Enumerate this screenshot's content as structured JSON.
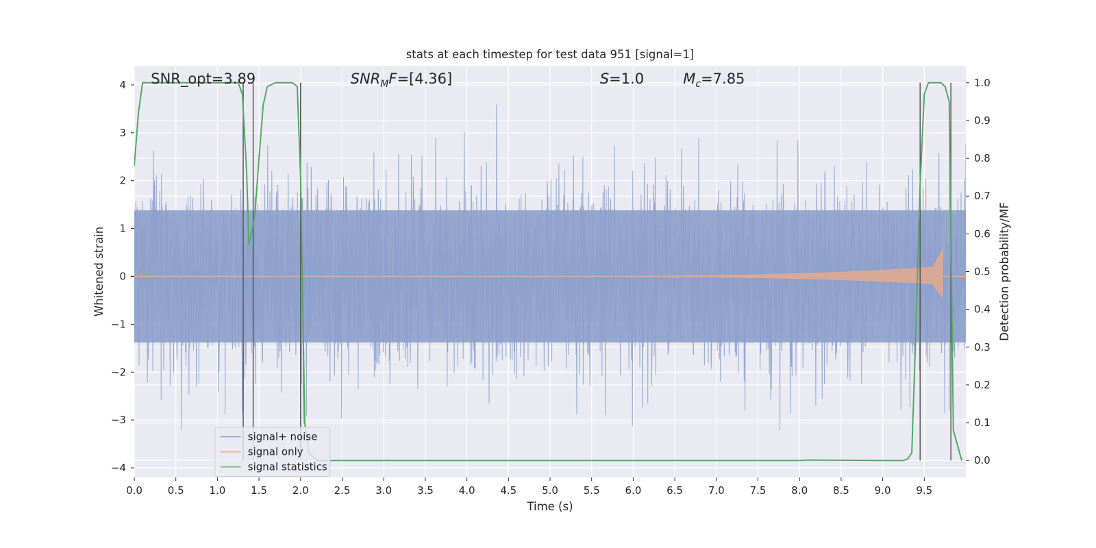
{
  "chart_data": {
    "type": "line",
    "title": "stats at each timestep for test data 951 [signal=1]",
    "xlabel": "Time (s)",
    "ylabel_left": "Whitened strain",
    "ylabel_right": "Detection probability/MF",
    "xlim": [
      0.0,
      10.0
    ],
    "ylim_left": [
      -4.2,
      4.4
    ],
    "ylim_right": [
      -0.045,
      1.045
    ],
    "x_ticks": [
      "0.0",
      "0.5",
      "1.0",
      "1.5",
      "2.0",
      "2.5",
      "3.0",
      "3.5",
      "4.0",
      "4.5",
      "5.0",
      "5.5",
      "6.0",
      "6.5",
      "7.0",
      "7.5",
      "8.0",
      "8.5",
      "9.0",
      "9.5"
    ],
    "y_ticks_left": [
      "4",
      "3",
      "2",
      "1",
      "0",
      "−1",
      "−2",
      "−3",
      "−4"
    ],
    "y_ticks_right": [
      "1.0",
      "0.9",
      "0.8",
      "0.7",
      "0.6",
      "0.5",
      "0.4",
      "0.3",
      "0.2",
      "0.1",
      "0.0"
    ],
    "grid": true,
    "legend_position": "lower-left",
    "annotations": {
      "snr_opt": "SNR_opt=3.89",
      "snr_mf": "=[4.36]",
      "snr_mf_symbol": "SNR",
      "snr_mf_sub": "M",
      "snr_mf_f": "F",
      "s_sym": "S",
      "s_val": "=1.0",
      "mc_sym": "M",
      "mc_sub": "c",
      "mc_val": "=7.85"
    },
    "series": [
      {
        "name": "signal+ noise",
        "color": "#8da0cb",
        "description_values": "white Gaussian noise, envelope about ±2.2 with spikes to ±3.8"
      },
      {
        "name": "signal only",
        "color": "#e5a98c",
        "chirp_start": 5.5,
        "chirp_end": 9.72,
        "peak_amplitude": 0.55
      },
      {
        "name": "signal statistics",
        "color": "#55a868",
        "x": [
          0.0,
          0.05,
          0.1,
          0.2,
          0.5,
          1.0,
          1.25,
          1.3,
          1.35,
          1.38,
          1.45,
          1.5,
          1.55,
          1.6,
          1.7,
          1.9,
          1.96,
          2.0,
          2.05,
          2.1,
          2.2,
          3.0,
          5.0,
          7.0,
          8.0,
          8.1,
          9.0,
          9.25,
          9.3,
          9.35,
          9.4,
          9.45,
          9.5,
          9.55,
          9.6,
          9.7,
          9.75,
          9.8,
          9.85,
          9.95
        ],
        "y": [
          0.78,
          0.92,
          1.0,
          1.0,
          1.0,
          1.0,
          1.0,
          0.97,
          0.77,
          0.57,
          0.65,
          0.8,
          0.94,
          0.99,
          1.0,
          1.0,
          0.99,
          0.75,
          0.1,
          0.02,
          0.0,
          0.0,
          0.0,
          0.0,
          0.0,
          0.001,
          0.0,
          0.0,
          0.004,
          0.02,
          0.35,
          0.73,
          0.97,
          1.0,
          1.0,
          1.0,
          0.99,
          0.95,
          0.08,
          0.0
        ]
      }
    ],
    "vertical_lines": [
      1.31,
      1.43,
      2.0,
      9.45,
      9.82
    ],
    "vertical_line_color": "#555555"
  }
}
